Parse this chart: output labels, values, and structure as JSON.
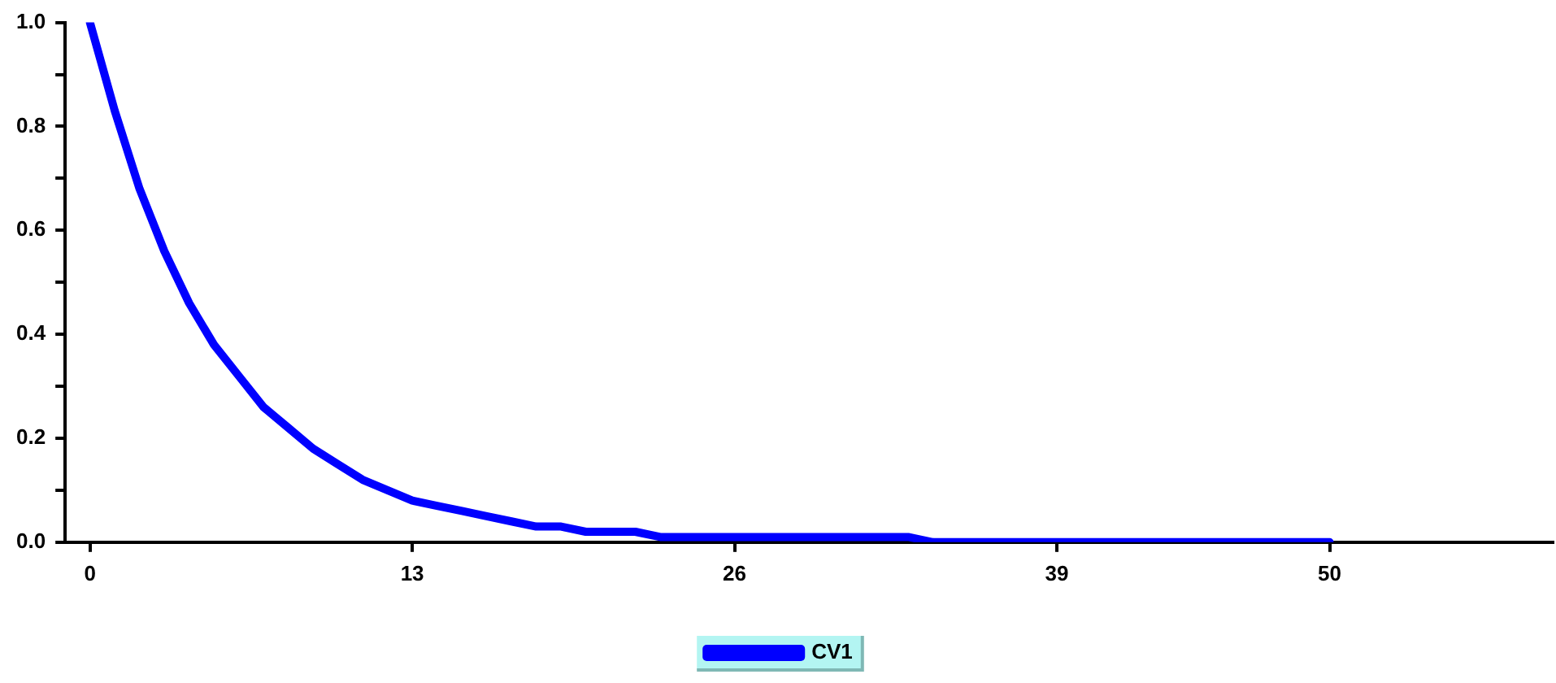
{
  "chart_data": {
    "type": "line",
    "x": [
      0,
      1,
      2,
      3,
      4,
      5,
      6,
      7,
      8,
      9,
      10,
      11,
      12,
      13,
      14,
      15,
      16,
      17,
      18,
      19,
      20,
      21,
      22,
      23,
      24,
      25,
      26,
      27,
      28,
      29,
      30,
      31,
      32,
      33,
      34,
      35,
      36,
      37,
      38,
      39,
      40,
      41,
      42,
      43,
      44,
      45,
      46,
      47,
      48,
      49,
      50
    ],
    "series": [
      {
        "name": "CV1",
        "color": "#0000ff",
        "values": [
          1.0,
          0.83,
          0.68,
          0.56,
          0.46,
          0.38,
          0.32,
          0.26,
          0.22,
          0.18,
          0.15,
          0.12,
          0.1,
          0.08,
          0.07,
          0.06,
          0.05,
          0.04,
          0.03,
          0.03,
          0.02,
          0.02,
          0.02,
          0.01,
          0.01,
          0.01,
          0.01,
          0.01,
          0.01,
          0.01,
          0.01,
          0.01,
          0.01,
          0.01,
          0,
          0,
          0,
          0,
          0,
          0,
          0,
          0,
          0,
          0,
          0,
          0,
          0,
          0,
          0,
          0,
          0
        ]
      }
    ],
    "xlim": [
      -1,
      59
    ],
    "xticks": [
      0,
      13,
      26,
      39,
      50
    ],
    "ylim": [
      0,
      1
    ],
    "yticks": [
      {
        "value": 0,
        "label": "0.0"
      },
      {
        "value": 0.1,
        "label": null
      },
      {
        "value": 0.2,
        "label": "0.2"
      },
      {
        "value": 0.3,
        "label": null
      },
      {
        "value": 0.4,
        "label": "0.4"
      },
      {
        "value": 0.5,
        "label": null
      },
      {
        "value": 0.6,
        "label": "0.6"
      },
      {
        "value": 0.7,
        "label": null
      },
      {
        "value": 0.8,
        "label": "0.8"
      },
      {
        "value": 0.9,
        "label": null
      },
      {
        "value": 1,
        "label": "1.0"
      }
    ],
    "grid": false,
    "legend": "bottom",
    "marker": "none",
    "line_style": "solid"
  }
}
